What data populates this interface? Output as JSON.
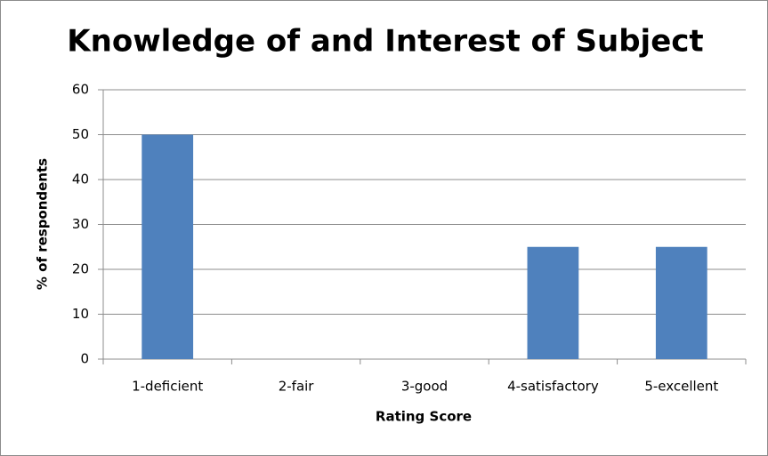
{
  "chart_data": {
    "type": "bar",
    "title": "Knowledge of and Interest of Subject",
    "xlabel": "Rating Score",
    "ylabel": "% of respondents",
    "categories": [
      "1-deficient",
      "2-fair",
      "3-good",
      "4-satisfactory",
      "5-excellent"
    ],
    "values": [
      50,
      0,
      0,
      25,
      25
    ],
    "color": "#4f81bd",
    "ylim": [
      0,
      60
    ],
    "yticks": [
      0,
      10,
      20,
      30,
      40,
      50,
      60
    ],
    "grid": true
  }
}
